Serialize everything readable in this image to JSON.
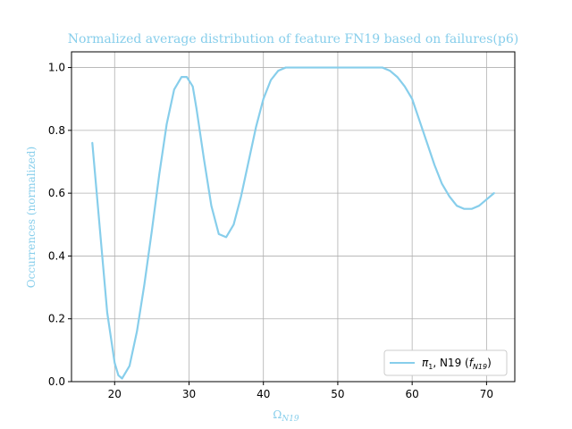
{
  "chart_data": {
    "type": "line",
    "title": "Normalized average distribution of feature FN19 based on failures(p6)",
    "xlabel": "Ω",
    "xlabel_sub": "N19",
    "ylabel": "Occurrences (normalized)",
    "xlim": [
      14.2,
      73.8
    ],
    "ylim": [
      0,
      1.05
    ],
    "xticks": [
      20,
      30,
      40,
      50,
      60,
      70
    ],
    "yticks": [
      0.0,
      0.2,
      0.4,
      0.6,
      0.8,
      1.0
    ],
    "xtick_labels": [
      "20",
      "30",
      "40",
      "50",
      "60",
      "70"
    ],
    "ytick_labels": [
      "0.0",
      "0.2",
      "0.4",
      "0.6",
      "0.8",
      "1.0"
    ],
    "grid": true,
    "legend_position": "lower-right",
    "series": [
      {
        "name": "π1, N19 (fN19)",
        "name_parts": {
          "pi": "π",
          "pi_sub": "1",
          "mid": ", N19 (",
          "f": "f",
          "f_sub": "N19",
          "end": ")"
        },
        "color": "#87CEEB",
        "x": [
          17,
          18,
          19,
          20,
          20.5,
          21,
          22,
          23,
          24,
          25,
          26,
          27,
          28,
          29,
          29.7,
          30.5,
          31,
          32,
          33,
          34,
          35,
          36,
          37,
          38,
          39,
          40,
          41,
          42,
          43,
          45,
          50,
          55,
          56,
          57,
          58,
          59,
          60,
          61,
          62,
          63,
          64,
          65,
          66,
          67,
          68,
          69,
          70,
          71
        ],
        "y": [
          0.76,
          0.49,
          0.22,
          0.06,
          0.02,
          0.01,
          0.05,
          0.16,
          0.31,
          0.48,
          0.66,
          0.82,
          0.93,
          0.97,
          0.97,
          0.94,
          0.87,
          0.71,
          0.56,
          0.47,
          0.46,
          0.5,
          0.59,
          0.7,
          0.81,
          0.9,
          0.96,
          0.99,
          1.0,
          1.0,
          1.0,
          1.0,
          1.0,
          0.99,
          0.97,
          0.94,
          0.9,
          0.83,
          0.76,
          0.69,
          0.63,
          0.59,
          0.56,
          0.55,
          0.55,
          0.56,
          0.58,
          0.6
        ]
      }
    ]
  }
}
